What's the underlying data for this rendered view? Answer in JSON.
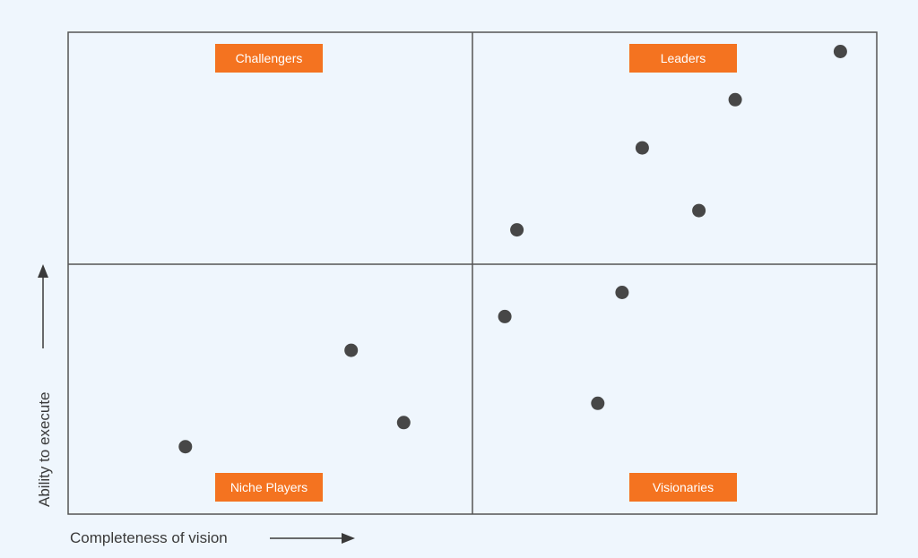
{
  "chart_data": {
    "type": "scatter",
    "title": "",
    "xlabel": "Completeness of vision",
    "ylabel": "Ability to execute",
    "xlim": [
      0,
      100
    ],
    "ylim": [
      0,
      100
    ],
    "quadrants": {
      "top_left": "Challengers",
      "top_right": "Leaders",
      "bottom_left": "Niche Players",
      "bottom_right": "Visionaries"
    },
    "points": [
      {
        "x": 95.5,
        "y": 96
      },
      {
        "x": 82.5,
        "y": 86
      },
      {
        "x": 71,
        "y": 76
      },
      {
        "x": 78,
        "y": 63
      },
      {
        "x": 55.5,
        "y": 59
      },
      {
        "x": 68.5,
        "y": 46
      },
      {
        "x": 54,
        "y": 41
      },
      {
        "x": 35,
        "y": 34
      },
      {
        "x": 65.5,
        "y": 23
      },
      {
        "x": 41.5,
        "y": 19
      },
      {
        "x": 14.5,
        "y": 14
      }
    ],
    "grid": false,
    "colors": {
      "background": "#eff6fd",
      "frame": "#555555",
      "point": "#474747",
      "label_bg": "#f47320",
      "label_text": "#ffffff"
    }
  }
}
